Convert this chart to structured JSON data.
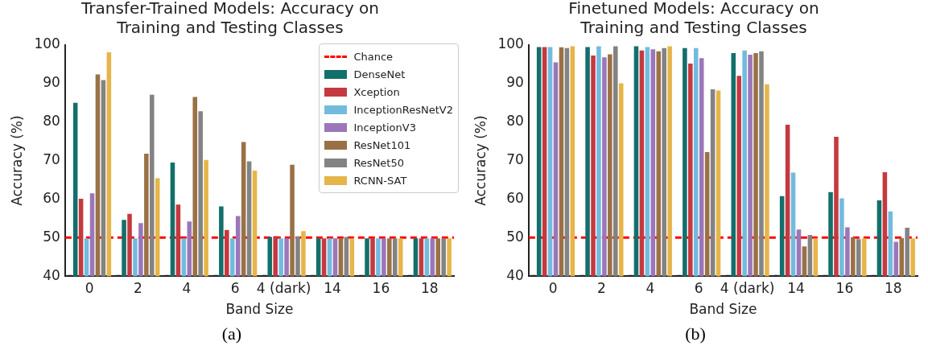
{
  "chart_data": [
    {
      "type": "bar",
      "title": "Transfer-Trained Models: Accuracy on\nTraining and Testing Classes",
      "xlabel": "Band Size",
      "ylabel": "Accuracy (%)",
      "annotations": [
        "(a)"
      ],
      "categories": [
        "0",
        "2",
        "4",
        "6",
        "4 (dark)",
        "14",
        "16",
        "18"
      ],
      "ylim": [
        40,
        100
      ],
      "yticks": [
        40,
        50,
        60,
        70,
        80,
        90,
        100
      ],
      "grid": false,
      "legend": "top right",
      "ref_lines": [
        {
          "axis": "y",
          "value": 50,
          "label": "Chance",
          "color": "#ff0000",
          "line_style": "dashed"
        }
      ],
      "series": [
        {
          "color": "#222222",
          "values": [
            40.3,
            40.3,
            40.3,
            40.3,
            40.3,
            40.3,
            40.3,
            40.3
          ]
        },
        {
          "name": "DenseNet",
          "color": "#136f6b",
          "values": [
            85.0,
            54.6,
            69.5,
            58.1,
            50.2,
            49.8,
            49.8,
            49.8
          ]
        },
        {
          "name": "Xception",
          "color": "#c4393f",
          "values": [
            60.1,
            56.2,
            58.6,
            52.0,
            50.4,
            49.8,
            49.8,
            49.8
          ]
        },
        {
          "name": "InceptionResNetV2",
          "color": "#72bbdf",
          "values": [
            49.8,
            49.8,
            49.8,
            49.8,
            49.8,
            49.8,
            49.8,
            49.8
          ]
        },
        {
          "name": "InceptionV3",
          "color": "#9b76b9",
          "values": [
            61.5,
            53.8,
            54.2,
            55.6,
            49.8,
            49.8,
            49.8,
            49.8
          ]
        },
        {
          "name": "ResNet101",
          "color": "#9a7146",
          "values": [
            92.4,
            71.8,
            86.5,
            74.8,
            68.9,
            49.8,
            49.8,
            49.8
          ]
        },
        {
          "name": "ResNet50",
          "color": "#838383",
          "values": [
            90.9,
            87.1,
            82.8,
            69.8,
            50.3,
            50.2,
            49.8,
            49.8
          ]
        },
        {
          "name": "RCNN-SAT",
          "color": "#e6b54a",
          "values": [
            98.1,
            65.4,
            70.2,
            67.4,
            51.7,
            49.8,
            49.8,
            49.8
          ]
        }
      ]
    },
    {
      "type": "bar",
      "title": "Finetuned Models: Accuracy on\nTraining and Testing Classes",
      "xlabel": "Band Size",
      "ylabel": "Accuracy (%)",
      "annotations": [
        "(b)"
      ],
      "categories": [
        "0",
        "2",
        "4",
        "6",
        "4 (dark)",
        "14",
        "16",
        "18"
      ],
      "ylim": [
        40,
        100
      ],
      "yticks": [
        40,
        50,
        60,
        70,
        80,
        90,
        100
      ],
      "grid": false,
      "ref_lines": [
        {
          "axis": "y",
          "value": 50,
          "color": "#ff0000",
          "line_style": "dashed"
        }
      ],
      "series": [
        {
          "color": "#222222",
          "values": [
            40.3,
            40.3,
            40.3,
            40.3,
            40.3,
            40.3,
            40.3,
            40.3
          ]
        },
        {
          "color": "#136f6b",
          "values": [
            99.5,
            99.5,
            99.7,
            99.2,
            97.9,
            60.8,
            61.8,
            59.7
          ]
        },
        {
          "color": "#c4393f",
          "values": [
            99.5,
            97.3,
            98.6,
            95.2,
            92.0,
            79.3,
            76.2,
            67.0
          ]
        },
        {
          "color": "#72bbdf",
          "values": [
            99.5,
            99.7,
            99.5,
            99.2,
            98.6,
            66.9,
            60.2,
            56.8
          ]
        },
        {
          "color": "#9b76b9",
          "values": [
            95.5,
            96.8,
            98.9,
            96.6,
            97.5,
            52.1,
            52.7,
            48.9
          ]
        },
        {
          "color": "#9a7146",
          "values": [
            99.4,
            97.6,
            98.4,
            72.2,
            97.9,
            47.7,
            50.1,
            49.9
          ]
        },
        {
          "color": "#838383",
          "values": [
            99.2,
            99.7,
            99.2,
            88.5,
            98.4,
            50.7,
            49.6,
            52.6
          ]
        },
        {
          "color": "#e6b54a",
          "values": [
            99.7,
            90.1,
            99.7,
            88.2,
            89.8,
            49.8,
            49.8,
            49.8
          ]
        }
      ]
    }
  ]
}
